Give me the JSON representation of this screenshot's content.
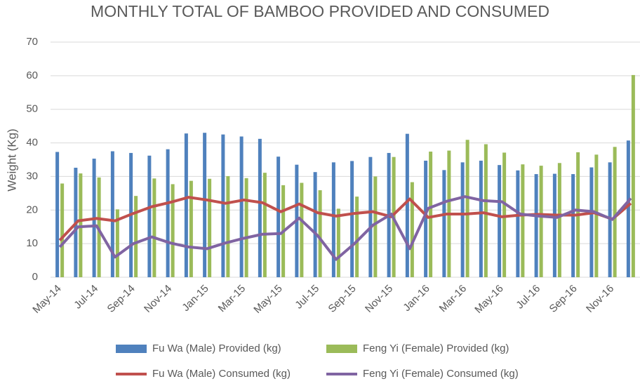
{
  "chart_data": {
    "type": "bar_line",
    "title": "MONTHLY TOTAL OF BAMBOO PROVIDED AND CONSUMED",
    "y_label": "Weight (Kg)",
    "categories": [
      "May-14",
      null,
      "Jul-14",
      null,
      "Sep-14",
      null,
      "Nov-14",
      null,
      "Jan-15",
      null,
      "Mar-15",
      null,
      "May-15",
      null,
      "Jul-15",
      null,
      "Sep-15",
      null,
      "Nov-15",
      null,
      "Jan-16",
      null,
      "Mar-16",
      null,
      "May-16",
      null,
      "Jul-16",
      null,
      "Sep-16",
      null,
      "Nov-16",
      null
    ],
    "series": [
      {
        "name": "Fu Wa (Male) Provided (kg)",
        "kind": "bar",
        "color": "#4f81bd",
        "values": [
          37.3,
          32.6,
          35.3,
          37.5,
          37,
          36.2,
          38.1,
          42.8,
          43,
          42.5,
          41.9,
          41.2,
          35.9,
          33.5,
          31.3,
          34.2,
          34.6,
          35.8,
          37,
          42.7,
          34.7,
          31.9,
          34.2,
          34.7,
          33.4,
          31.8,
          30.7,
          30.8,
          30.7,
          32.7,
          34.2,
          40.7
        ]
      },
      {
        "name": "Feng Yi (Female) Provided (kg)",
        "kind": "bar",
        "color": "#9bbb59",
        "values": [
          27.9,
          30.9,
          29.7,
          20.2,
          24.2,
          29.4,
          27.7,
          28.7,
          29.3,
          30.1,
          29.5,
          31.1,
          27.4,
          28.1,
          25.9,
          20.4,
          24,
          30,
          35.8,
          28.3,
          37.4,
          37.7,
          40.9,
          39.6,
          37.1,
          33.6,
          33.2,
          34,
          37.2,
          36.5,
          38.8,
          60.2
        ]
      },
      {
        "name": "Fu Wa (Male) Consumed (kg)",
        "kind": "line",
        "color": "#c0504d",
        "values": [
          11,
          16.8,
          17.5,
          16.8,
          19,
          21,
          22.3,
          23.8,
          23,
          22,
          23,
          22.2,
          19.5,
          21.8,
          19.2,
          18.2,
          19,
          19.5,
          18,
          23.3,
          17.8,
          18.8,
          18.8,
          19.2,
          18,
          18.5,
          18.7,
          18.5,
          18.5,
          19.2,
          17.3,
          22
        ]
      },
      {
        "name": "Feng Yi (Female) Consumed (kg)",
        "kind": "line",
        "color": "#8064a2",
        "values": [
          9,
          15,
          15.3,
          6,
          10,
          12,
          10.2,
          9,
          8.5,
          10.2,
          11.6,
          12.8,
          13,
          17.6,
          12.4,
          5.3,
          10,
          15.5,
          18.8,
          8.5,
          20.5,
          22.6,
          24,
          22.8,
          22.5,
          18.8,
          18.2,
          17.8,
          20,
          19.5,
          17.2,
          23.5
        ]
      }
    ],
    "ylim": [
      0,
      70
    ],
    "yticks": [
      0,
      10,
      20,
      30,
      40,
      50,
      60,
      70
    ],
    "grid": true
  }
}
